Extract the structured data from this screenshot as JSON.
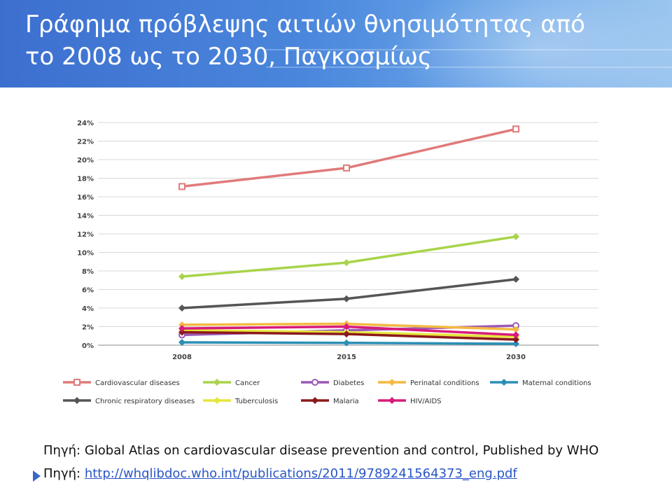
{
  "slide": {
    "title_line1": "Γράφημα πρόβλεψης αιτιών θνησιμότητας από",
    "title_line2": "το 2008 ως το 2030, Παγκοσμίως",
    "source_prefix": "Πηγή:",
    "source_text": "Global Atlas on cardiovascular disease prevention and control, Published by WHO",
    "source_url": "http://whqlibdoc.who.int/publications/2011/9789241564373_eng.pdf",
    "bullet_icon": "triangle-bullet-icon",
    "header_color": "#4a86dc"
  },
  "chart_data": {
    "type": "line",
    "x": [
      "2008",
      "2015",
      "2030"
    ],
    "y_ticks": [
      "0%",
      "2%",
      "4%",
      "6%",
      "8%",
      "10%",
      "12%",
      "14%",
      "16%",
      "18%",
      "20%",
      "22%",
      "24%"
    ],
    "ylim": [
      0,
      24
    ],
    "grid": true,
    "legend_position": "bottom",
    "series": [
      {
        "name": "Cardiovascular diseases",
        "values": [
          17.1,
          19.1,
          23.3
        ],
        "color": "#e07a7a",
        "marker": "square"
      },
      {
        "name": "Cancer",
        "values": [
          7.4,
          8.9,
          11.7
        ],
        "color": "#a8d44a",
        "marker": "diamond"
      },
      {
        "name": "Diabetes",
        "values": [
          1.1,
          1.6,
          2.1
        ],
        "color": "#9b59b6",
        "marker": "circle"
      },
      {
        "name": "Perinatal conditions",
        "values": [
          2.2,
          2.3,
          1.7
        ],
        "color": "#f4b942",
        "marker": "diamond"
      },
      {
        "name": "Maternal conditions",
        "values": [
          0.3,
          0.25,
          0.15
        ],
        "color": "#2b8fb5",
        "marker": "diamond"
      },
      {
        "name": "Chronic respiratory diseases",
        "values": [
          4.0,
          5.0,
          7.1
        ],
        "color": "#555555",
        "marker": "diamond"
      },
      {
        "name": "Tuberculosis",
        "values": [
          1.6,
          1.4,
          0.9
        ],
        "color": "#e6e63c",
        "marker": "diamond"
      },
      {
        "name": "Malaria",
        "values": [
          1.4,
          1.2,
          0.6
        ],
        "color": "#8b1a1a",
        "marker": "diamond"
      },
      {
        "name": "HIV/AIDS",
        "values": [
          1.8,
          2.0,
          1.1
        ],
        "color": "#d81b7a",
        "marker": "diamond"
      }
    ]
  }
}
